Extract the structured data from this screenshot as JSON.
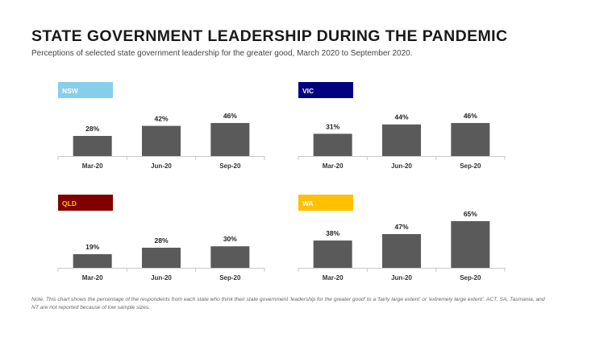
{
  "title": "STATE GOVERNMENT LEADERSHIP DURING THE PANDEMIC",
  "subtitle": "Perceptions of selected state government leadership for the greater good, March 2020 to September 2020.",
  "note": "Note. This chart shows the percentage of the respondents from each state who think their state government 'leadership for the greater good' to a 'fairly large extent' or 'extremely large extent'. ACT, SA, Tasmania, and NT are not reported because of low sample sizes.",
  "bar_color": "#5a5a5a",
  "chart_data": [
    {
      "type": "bar",
      "label": "NSW",
      "label_bg": "#87ceeb",
      "label_color": "#ffffff",
      "categories": [
        "Mar-20",
        "Jun-20",
        "Sep-20"
      ],
      "values": [
        28,
        42,
        46
      ],
      "value_labels": [
        "28%",
        "42%",
        "46%"
      ],
      "ylim": [
        0,
        65
      ]
    },
    {
      "type": "bar",
      "label": "VIC",
      "label_bg": "#000080",
      "label_color": "#ffffff",
      "categories": [
        "Mar-20",
        "Jun-20",
        "Sep-20"
      ],
      "values": [
        31,
        44,
        46
      ],
      "value_labels": [
        "31%",
        "44%",
        "46%"
      ],
      "ylim": [
        0,
        65
      ]
    },
    {
      "type": "bar",
      "label": "QLD",
      "label_bg": "#800000",
      "label_color": "#ffc000",
      "categories": [
        "Mar-20",
        "Jun-20",
        "Sep-20"
      ],
      "values": [
        19,
        28,
        30
      ],
      "value_labels": [
        "19%",
        "28%",
        "30%"
      ],
      "ylim": [
        0,
        65
      ]
    },
    {
      "type": "bar",
      "label": "WA",
      "label_bg": "#ffc000",
      "label_color": "#ffffff",
      "categories": [
        "Mar-20",
        "Jun-20",
        "Sep-20"
      ],
      "values": [
        38,
        47,
        65
      ],
      "value_labels": [
        "38%",
        "47%",
        "65%"
      ],
      "ylim": [
        0,
        65
      ]
    }
  ]
}
